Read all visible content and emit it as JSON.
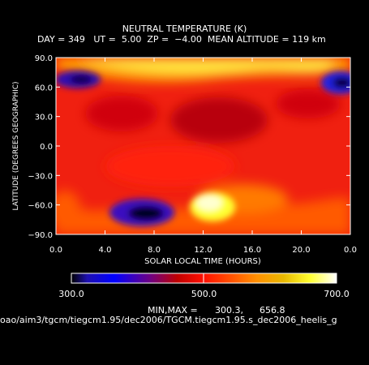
{
  "header": {
    "title": "NEUTRAL TEMPERATURE (K)",
    "subtitle": "DAY = 349   UT =  5.00  ZP =  −4.00  MEAN ALTITUDE = 119 km"
  },
  "chart_data": {
    "type": "heatmap",
    "title": "NEUTRAL TEMPERATURE (K)",
    "xlabel": "SOLAR LOCAL TIME (HOURS)",
    "ylabel": "LATITUDE (DEGREES GEOGRAPHIC)",
    "xlim": [
      0,
      24
    ],
    "ylim": [
      -90,
      90
    ],
    "x_ticks": [
      "0.0",
      "4.0",
      "8.0",
      "12.0",
      "16.0",
      "20.0",
      "0.0"
    ],
    "y_ticks": [
      "90.0",
      "60.0",
      "30.0",
      "0.0",
      "−30.0",
      "−60.0",
      "−90.0"
    ],
    "zlim": [
      300,
      700
    ],
    "features": [
      {
        "x": 2.5,
        "y": 68,
        "value": 330
      },
      {
        "x": 23,
        "y": 65,
        "value": 320
      },
      {
        "x": 8,
        "y": -68,
        "value": 300.3
      },
      {
        "x": 13,
        "y": -65,
        "value": 656.8
      },
      {
        "x": 14,
        "y": 88,
        "value": 640
      },
      {
        "x": 15,
        "y": 25,
        "value": 450
      },
      {
        "x": 7,
        "y": 20,
        "value": 470
      }
    ],
    "colorbar": {
      "ticks": [
        "300.0",
        "500.0",
        "700.0"
      ],
      "stops": [
        "#000000",
        "#1e10b0",
        "#0000ff",
        "#700080",
        "#c00000",
        "#ff1000",
        "#ff5000",
        "#ff9000",
        "#e8b800",
        "#ffff30",
        "#ffffff"
      ]
    }
  },
  "footer": {
    "minmax_label": "MIN,MAX =",
    "min_value": "300.3,",
    "max_value": "656.8",
    "path": "oao/aim3/tgcm/tiegcm1.95/dec2006/TGCM.tiegcm1.95.s_dec2006_heelis_g"
  }
}
